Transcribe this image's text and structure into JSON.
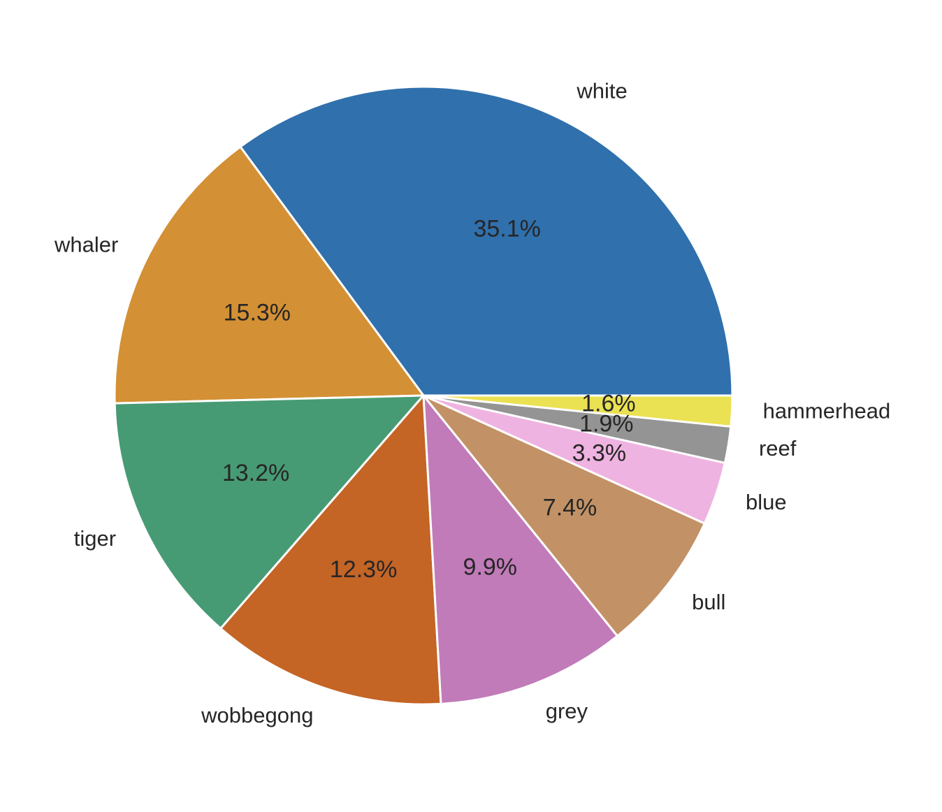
{
  "chart_data": {
    "type": "pie",
    "categories": [
      "white",
      "whaler",
      "tiger",
      "wobbegong",
      "grey",
      "bull",
      "blue",
      "reef",
      "hammerhead"
    ],
    "values": [
      35.1,
      15.3,
      13.2,
      12.3,
      9.9,
      7.4,
      3.3,
      1.9,
      1.6
    ],
    "percent_labels": [
      "35.1%",
      "15.3%",
      "13.2%",
      "12.3%",
      "9.9%",
      "7.4%",
      "3.3%",
      "1.9%",
      "1.6%"
    ],
    "colors": [
      "#3070ad",
      "#d39034",
      "#479b74",
      "#c46425",
      "#c17bb9",
      "#c29266",
      "#efb3e1",
      "#949494",
      "#eae153"
    ],
    "start_angle_deg": 0,
    "direction": "counterclockwise",
    "title": ""
  }
}
